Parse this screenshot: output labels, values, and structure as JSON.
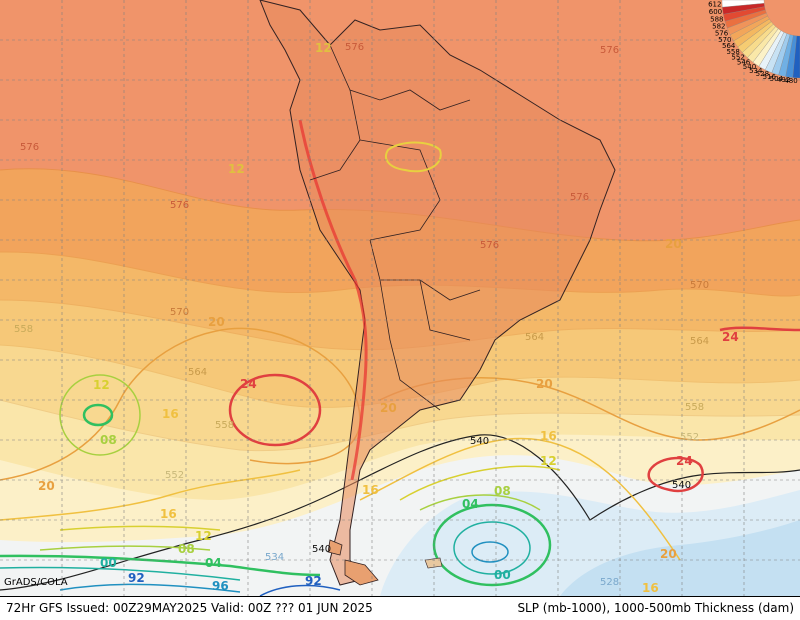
{
  "footer": {
    "left_text": "72Hr GFS Issued: 00Z29MAY2025 Valid: 00Z ??? 01 JUN 2025",
    "right_text": "SLP (mb-1000), 1000-500mb Thickness (dam)"
  },
  "credit": "GrADS/COLA",
  "thickness_labels": {
    "t576": "576",
    "t570": "570",
    "t564": "564",
    "t558": "558",
    "t552": "552",
    "t546": "546",
    "t540": "540",
    "t534": "534",
    "t528": "528"
  },
  "slp_labels": {
    "s24": "24",
    "s20": "20",
    "s16": "16",
    "s12": "12",
    "s08": "08",
    "s04": "04",
    "s00": "00",
    "s96": "96",
    "s92": "92"
  },
  "legend": {
    "values": [
      "612",
      "600",
      "588",
      "582",
      "576",
      "570",
      "564",
      "558",
      "552",
      "546",
      "540",
      "534",
      "528",
      "516",
      "504",
      "492",
      "480"
    ],
    "colors": [
      "#ffffff",
      "#c82828",
      "#e24a32",
      "#ea7040",
      "#f0945a",
      "#f2a65a",
      "#f4b860",
      "#f6cc72",
      "#f8dc8c",
      "#fae8a8",
      "#fcf2c8",
      "#e8f2f8",
      "#c8e2f4",
      "#a0ccee",
      "#70b0e4",
      "#4890d8",
      "#2060c0"
    ]
  },
  "colors": {
    "tropics": "#f0946a",
    "band_576": "#f2a45c",
    "band_570": "#f4b868",
    "band_564": "#f6c878",
    "band_558": "#f8d890",
    "band_552": "#fae6aa",
    "band_546": "#fcf0c8",
    "band_540": "#f2f4f4",
    "band_534": "#dcecf6",
    "band_528": "#c4e0f2",
    "high_contour": "#e04040",
    "mid_contour": "#e0b040",
    "low_contour": "#30c060"
  }
}
